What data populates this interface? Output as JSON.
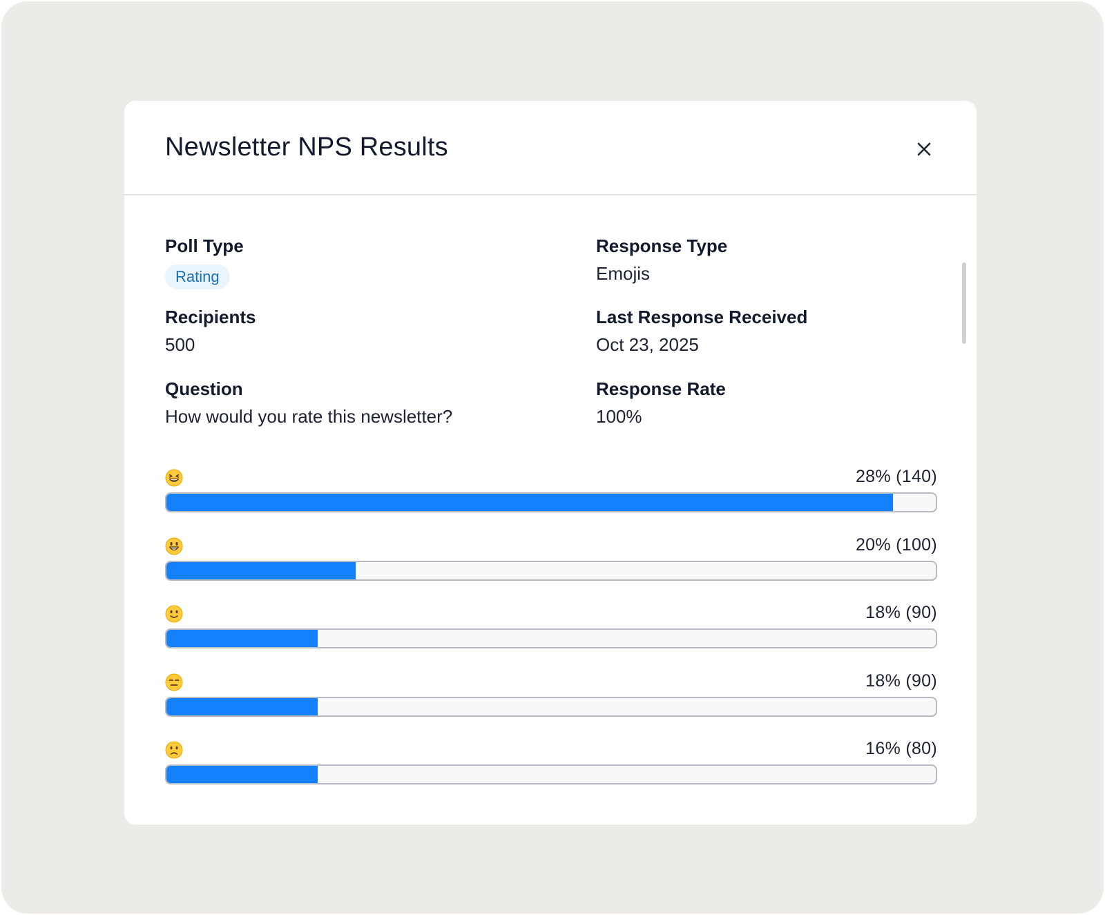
{
  "modal": {
    "title": "Newsletter NPS Results",
    "close_icon": "close-icon"
  },
  "details": {
    "poll_type_label": "Poll Type",
    "poll_type_value": "Rating",
    "response_type_label": "Response Type",
    "response_type_value": "Emojis",
    "recipients_label": "Recipients",
    "recipients_value": "500",
    "last_response_label": "Last Response Received",
    "last_response_value": "Oct 23, 2025",
    "question_label": "Question",
    "question_value": "How would you rate this newsletter?",
    "response_rate_label": "Response Rate",
    "response_rate_value": "100%"
  },
  "results": [
    {
      "emoji": "grinning-squinting-face-icon",
      "stat": "28% (140)",
      "percent": 28,
      "count": 140,
      "fill_fraction": 0.944
    },
    {
      "emoji": "grinning-face-icon",
      "stat": "20% (100)",
      "percent": 20,
      "count": 100,
      "fill_fraction": 0.246
    },
    {
      "emoji": "slightly-smiling-face-icon",
      "stat": "18% (90)",
      "percent": 18,
      "count": 90,
      "fill_fraction": 0.197
    },
    {
      "emoji": "expressionless-face-icon",
      "stat": "18% (90)",
      "percent": 18,
      "count": 90,
      "fill_fraction": 0.197
    },
    {
      "emoji": "slightly-frowning-face-icon",
      "stat": "16% (80)",
      "percent": 16,
      "count": 80,
      "fill_fraction": 0.197
    }
  ],
  "colors": {
    "bar_fill": "#1480fc",
    "bar_track": "#f8f8f8",
    "badge_bg": "#e9f4fc",
    "badge_text": "#1a6fb5"
  }
}
